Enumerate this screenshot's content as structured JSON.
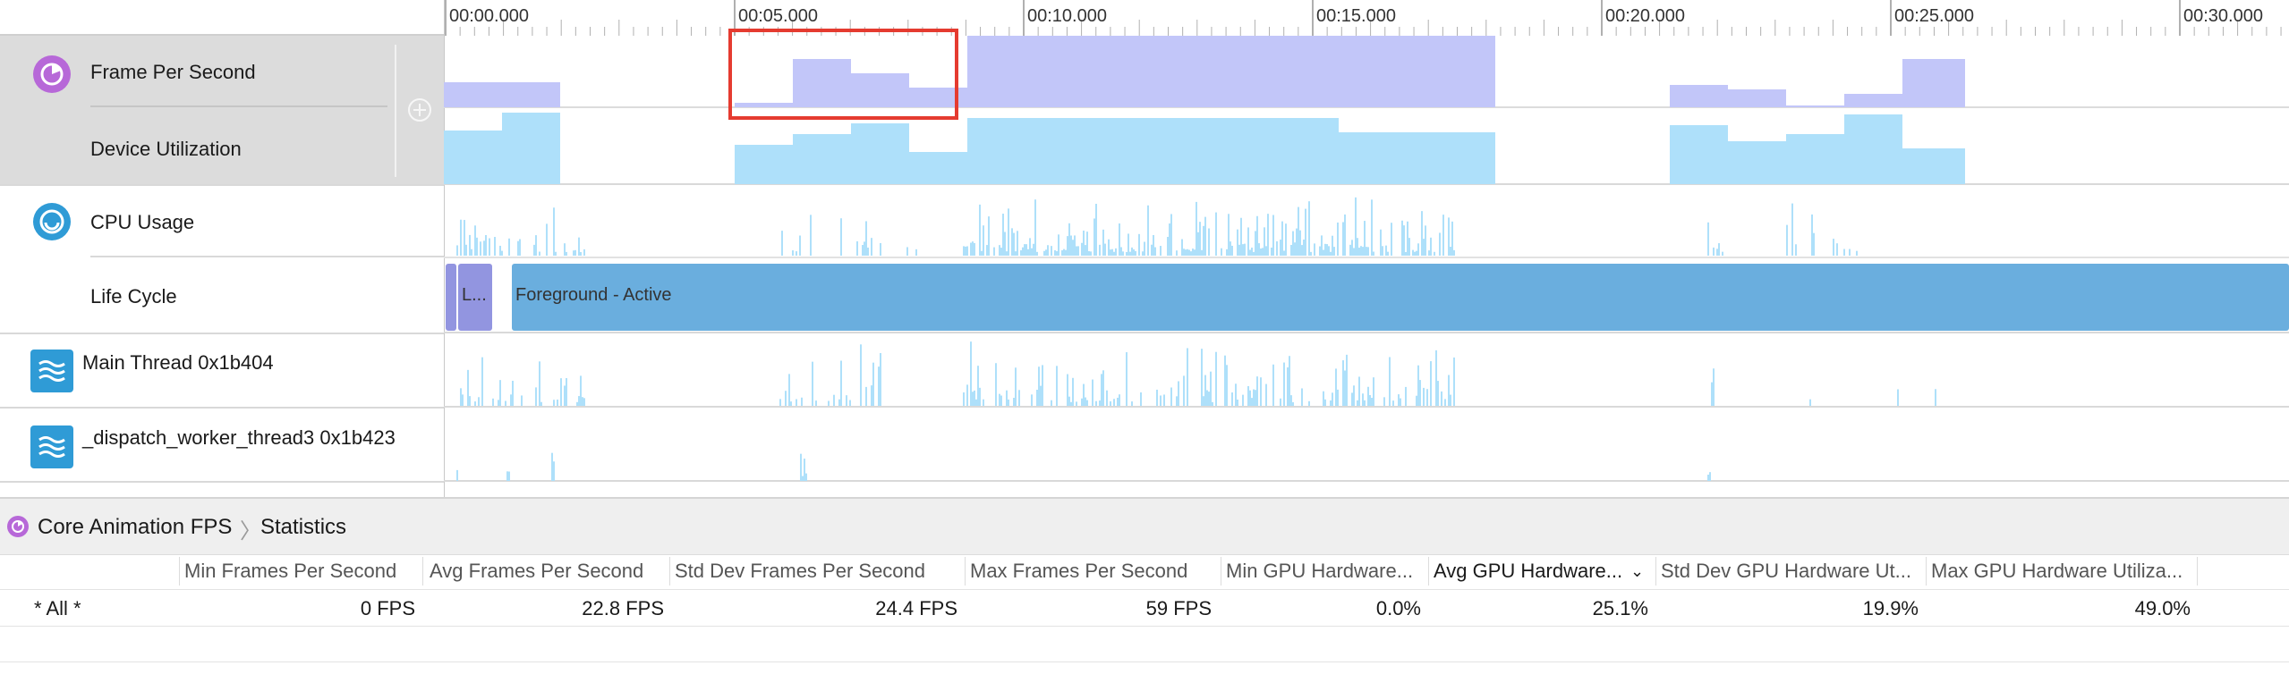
{
  "ruler": {
    "ticks": [
      "00:00.000",
      "00:05.000",
      "00:10.000",
      "00:15.000",
      "00:20.000",
      "00:25.000",
      "00:30.000"
    ]
  },
  "tracks": {
    "fps_label": "Frame Per Second",
    "device_label": "Device Utilization",
    "cpu_label": "CPU Usage",
    "lifecycle_label": "Life Cycle",
    "main_thread_label": "Main Thread  0x1b404",
    "worker_thread_label": "_dispatch_worker_thread3  0x1b423"
  },
  "lifecycle": {
    "launch_label": "L...",
    "foreground_label": "Foreground - Active"
  },
  "breadcrumb": {
    "instrument": "Core Animation FPS",
    "view": "Statistics"
  },
  "table": {
    "headers": [
      "Min Frames Per Second",
      "Avg Frames Per Second",
      "Std Dev Frames Per Second",
      "Max Frames Per Second",
      "Min GPU Hardware...",
      "Avg GPU Hardware...",
      "Std Dev GPU Hardware Ut...",
      "Max GPU Hardware Utiliza..."
    ],
    "row_label": "* All *",
    "row_values": [
      "0 FPS",
      "22.8 FPS",
      "24.4 FPS",
      "59 FPS",
      "0.0%",
      "25.1%",
      "19.9%",
      "49.0%"
    ]
  },
  "colors": {
    "fps_fill": "#c2c6f9",
    "device_fill": "#aee0fa",
    "cpu_fill": "#aee0fa",
    "lifecycle_launch": "#9295e0",
    "lifecycle_foreground": "#6aaede",
    "highlight_box": "#e53b30",
    "instrument_icon": "#b768d8",
    "cpu_icon": "#2f9bd6"
  }
}
